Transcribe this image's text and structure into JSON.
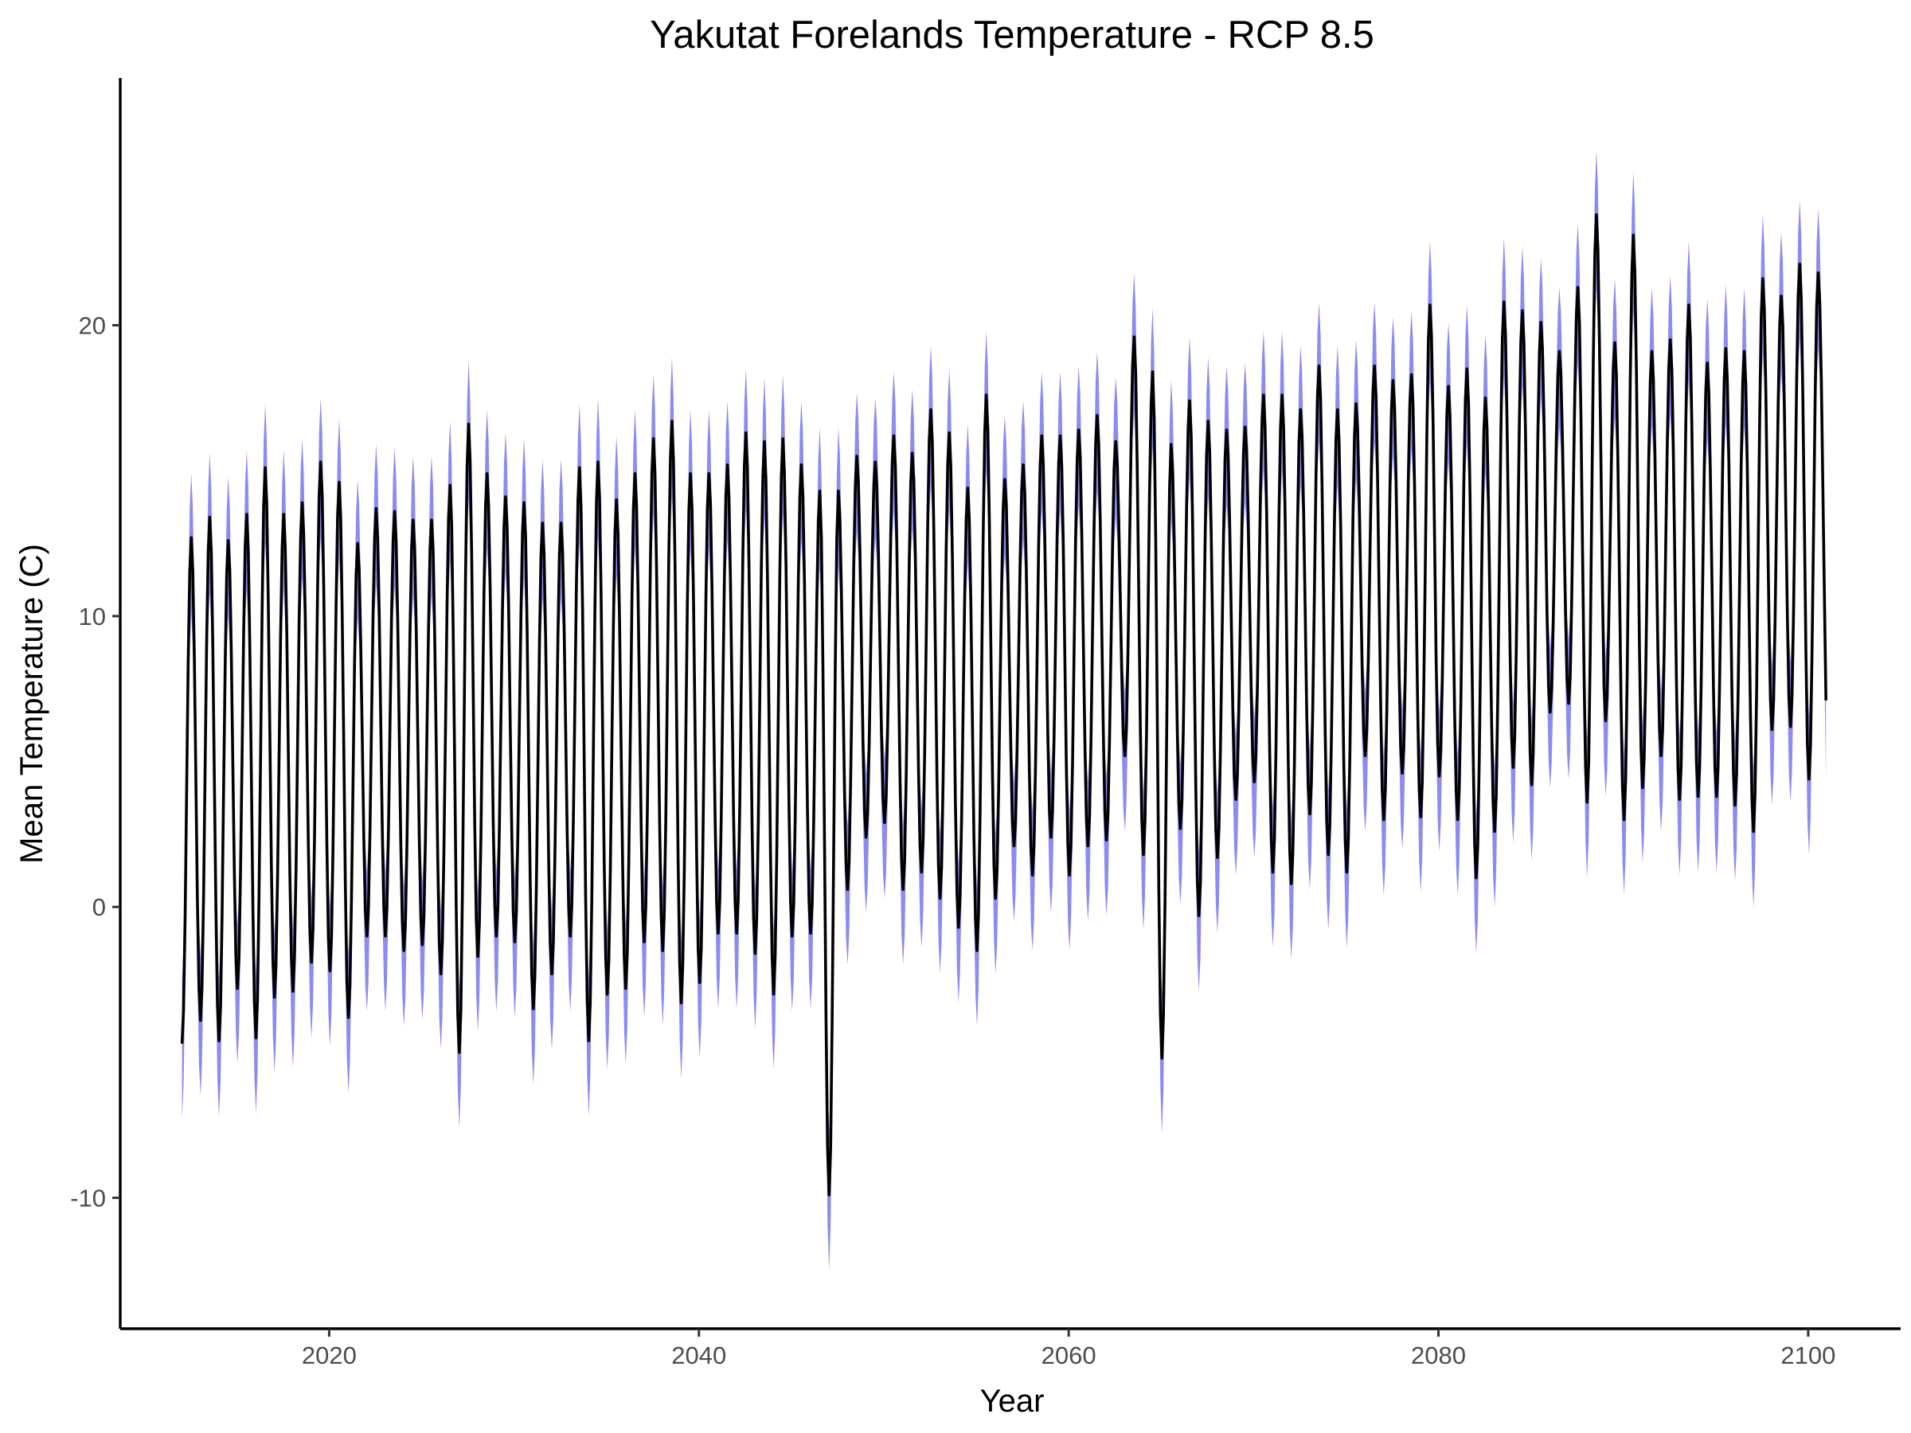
{
  "chart_data": {
    "type": "line",
    "title": "Yakutat Forelands Temperature - RCP 8.5",
    "xlabel": "Year",
    "ylabel": "Mean Temperature (C)",
    "xlim": [
      2008.7,
      2105.0
    ],
    "ylim": [
      -14.5,
      28.5
    ],
    "x_ticks": [
      2020,
      2040,
      2060,
      2080,
      2100
    ],
    "y_ticks": [
      -10,
      0,
      10,
      20
    ],
    "grid": false,
    "legend": "none",
    "colors": {
      "line": "#000000",
      "band": "#7777ee"
    },
    "series_description": "Monthly mean temperature, Jan 2012 - Dec 2100; line = ensemble mean, band = model range",
    "start": "2012-01",
    "end": "2100-12",
    "frequency": "monthly",
    "annual_summer_peak": [
      {
        "year": 2012,
        "value": 12.7
      },
      {
        "year": 2013,
        "value": 13.4
      },
      {
        "year": 2014,
        "value": 12.6
      },
      {
        "year": 2015,
        "value": 13.5
      },
      {
        "year": 2016,
        "value": 15.1
      },
      {
        "year": 2017,
        "value": 13.5
      },
      {
        "year": 2018,
        "value": 13.9
      },
      {
        "year": 2019,
        "value": 15.3
      },
      {
        "year": 2020,
        "value": 14.6
      },
      {
        "year": 2021,
        "value": 12.5
      },
      {
        "year": 2022,
        "value": 13.7
      },
      {
        "year": 2023,
        "value": 13.6
      },
      {
        "year": 2024,
        "value": 13.3
      },
      {
        "year": 2025,
        "value": 13.3
      },
      {
        "year": 2026,
        "value": 14.5
      },
      {
        "year": 2027,
        "value": 16.6
      },
      {
        "year": 2028,
        "value": 14.9
      },
      {
        "year": 2029,
        "value": 14.1
      },
      {
        "year": 2030,
        "value": 13.9
      },
      {
        "year": 2031,
        "value": 13.2
      },
      {
        "year": 2032,
        "value": 13.2
      },
      {
        "year": 2033,
        "value": 15.1
      },
      {
        "year": 2034,
        "value": 15.3
      },
      {
        "year": 2035,
        "value": 14.0
      },
      {
        "year": 2036,
        "value": 14.9
      },
      {
        "year": 2037,
        "value": 16.1
      },
      {
        "year": 2038,
        "value": 16.7
      },
      {
        "year": 2039,
        "value": 14.9
      },
      {
        "year": 2040,
        "value": 14.9
      },
      {
        "year": 2041,
        "value": 15.2
      },
      {
        "year": 2042,
        "value": 16.3
      },
      {
        "year": 2043,
        "value": 16.0
      },
      {
        "year": 2044,
        "value": 16.1
      },
      {
        "year": 2045,
        "value": 15.2
      },
      {
        "year": 2046,
        "value": 14.3
      },
      {
        "year": 2047,
        "value": 14.3
      },
      {
        "year": 2048,
        "value": 15.5
      },
      {
        "year": 2049,
        "value": 15.3
      },
      {
        "year": 2050,
        "value": 16.2
      },
      {
        "year": 2051,
        "value": 15.6
      },
      {
        "year": 2052,
        "value": 17.1
      },
      {
        "year": 2053,
        "value": 16.3
      },
      {
        "year": 2054,
        "value": 14.4
      },
      {
        "year": 2055,
        "value": 17.6
      },
      {
        "year": 2056,
        "value": 14.7
      },
      {
        "year": 2057,
        "value": 15.2
      },
      {
        "year": 2058,
        "value": 16.2
      },
      {
        "year": 2059,
        "value": 16.2
      },
      {
        "year": 2060,
        "value": 16.4
      },
      {
        "year": 2061,
        "value": 16.9
      },
      {
        "year": 2062,
        "value": 16.0
      },
      {
        "year": 2063,
        "value": 19.6
      },
      {
        "year": 2064,
        "value": 18.4
      },
      {
        "year": 2065,
        "value": 15.9
      },
      {
        "year": 2066,
        "value": 17.4
      },
      {
        "year": 2067,
        "value": 16.7
      },
      {
        "year": 2068,
        "value": 16.4
      },
      {
        "year": 2069,
        "value": 16.5
      },
      {
        "year": 2070,
        "value": 17.6
      },
      {
        "year": 2071,
        "value": 17.6
      },
      {
        "year": 2072,
        "value": 17.1
      },
      {
        "year": 2073,
        "value": 18.6
      },
      {
        "year": 2074,
        "value": 17.1
      },
      {
        "year": 2075,
        "value": 17.3
      },
      {
        "year": 2076,
        "value": 18.6
      },
      {
        "year": 2077,
        "value": 18.1
      },
      {
        "year": 2078,
        "value": 18.3
      },
      {
        "year": 2079,
        "value": 20.7
      },
      {
        "year": 2080,
        "value": 17.9
      },
      {
        "year": 2081,
        "value": 18.5
      },
      {
        "year": 2082,
        "value": 17.5
      },
      {
        "year": 2083,
        "value": 20.8
      },
      {
        "year": 2084,
        "value": 20.5
      },
      {
        "year": 2085,
        "value": 20.1
      },
      {
        "year": 2086,
        "value": 19.1
      },
      {
        "year": 2087,
        "value": 21.3
      },
      {
        "year": 2088,
        "value": 23.8
      },
      {
        "year": 2089,
        "value": 19.4
      },
      {
        "year": 2090,
        "value": 23.1
      },
      {
        "year": 2091,
        "value": 19.1
      },
      {
        "year": 2092,
        "value": 19.5
      },
      {
        "year": 2093,
        "value": 20.7
      },
      {
        "year": 2094,
        "value": 18.7
      },
      {
        "year": 2095,
        "value": 19.2
      },
      {
        "year": 2096,
        "value": 19.1
      },
      {
        "year": 2097,
        "value": 21.6
      },
      {
        "year": 2098,
        "value": 21.0
      },
      {
        "year": 2099,
        "value": 22.1
      },
      {
        "year": 2100,
        "value": 21.8
      }
    ],
    "annual_winter_trough": [
      {
        "year": 2012,
        "value": -4.7
      },
      {
        "year": 2013,
        "value": -3.9
      },
      {
        "year": 2014,
        "value": -4.6
      },
      {
        "year": 2015,
        "value": -2.8
      },
      {
        "year": 2016,
        "value": -4.5
      },
      {
        "year": 2017,
        "value": -3.1
      },
      {
        "year": 2018,
        "value": -2.9
      },
      {
        "year": 2019,
        "value": -1.9
      },
      {
        "year": 2020,
        "value": -2.2
      },
      {
        "year": 2021,
        "value": -3.8
      },
      {
        "year": 2022,
        "value": -1.0
      },
      {
        "year": 2023,
        "value": -1.0
      },
      {
        "year": 2024,
        "value": -1.5
      },
      {
        "year": 2025,
        "value": -1.3
      },
      {
        "year": 2026,
        "value": -2.3
      },
      {
        "year": 2027,
        "value": -5.0
      },
      {
        "year": 2028,
        "value": -1.7
      },
      {
        "year": 2029,
        "value": -1.0
      },
      {
        "year": 2030,
        "value": -1.2
      },
      {
        "year": 2031,
        "value": -3.5
      },
      {
        "year": 2032,
        "value": -2.3
      },
      {
        "year": 2033,
        "value": -1.0
      },
      {
        "year": 2034,
        "value": -4.6
      },
      {
        "year": 2035,
        "value": -3.0
      },
      {
        "year": 2036,
        "value": -2.8
      },
      {
        "year": 2037,
        "value": -1.2
      },
      {
        "year": 2038,
        "value": -1.5
      },
      {
        "year": 2039,
        "value": -3.3
      },
      {
        "year": 2040,
        "value": -2.6
      },
      {
        "year": 2041,
        "value": -0.9
      },
      {
        "year": 2042,
        "value": -0.9
      },
      {
        "year": 2043,
        "value": -1.6
      },
      {
        "year": 2044,
        "value": -3.0
      },
      {
        "year": 2045,
        "value": -1.0
      },
      {
        "year": 2046,
        "value": -0.9
      },
      {
        "year": 2047,
        "value": -9.9
      },
      {
        "year": 2048,
        "value": 0.6
      },
      {
        "year": 2049,
        "value": 2.4
      },
      {
        "year": 2050,
        "value": 2.9
      },
      {
        "year": 2051,
        "value": 0.6
      },
      {
        "year": 2052,
        "value": 1.2
      },
      {
        "year": 2053,
        "value": 0.3
      },
      {
        "year": 2054,
        "value": -0.7
      },
      {
        "year": 2055,
        "value": -1.5
      },
      {
        "year": 2056,
        "value": 0.3
      },
      {
        "year": 2057,
        "value": 2.1
      },
      {
        "year": 2058,
        "value": 1.1
      },
      {
        "year": 2059,
        "value": 2.4
      },
      {
        "year": 2060,
        "value": 1.1
      },
      {
        "year": 2061,
        "value": 2.1
      },
      {
        "year": 2062,
        "value": 2.3
      },
      {
        "year": 2063,
        "value": 5.2
      },
      {
        "year": 2064,
        "value": 1.8
      },
      {
        "year": 2065,
        "value": -5.2
      },
      {
        "year": 2066,
        "value": 2.7
      },
      {
        "year": 2067,
        "value": -0.3
      },
      {
        "year": 2068,
        "value": 1.7
      },
      {
        "year": 2069,
        "value": 3.7
      },
      {
        "year": 2070,
        "value": 4.3
      },
      {
        "year": 2071,
        "value": 1.2
      },
      {
        "year": 2072,
        "value": 0.8
      },
      {
        "year": 2073,
        "value": 3.2
      },
      {
        "year": 2074,
        "value": 1.8
      },
      {
        "year": 2075,
        "value": 1.2
      },
      {
        "year": 2076,
        "value": 5.2
      },
      {
        "year": 2077,
        "value": 3.0
      },
      {
        "year": 2078,
        "value": 4.6
      },
      {
        "year": 2079,
        "value": 3.1
      },
      {
        "year": 2080,
        "value": 4.5
      },
      {
        "year": 2081,
        "value": 3.0
      },
      {
        "year": 2082,
        "value": 1.0
      },
      {
        "year": 2083,
        "value": 2.6
      },
      {
        "year": 2084,
        "value": 4.8
      },
      {
        "year": 2085,
        "value": 4.2
      },
      {
        "year": 2086,
        "value": 6.7
      },
      {
        "year": 2087,
        "value": 7.0
      },
      {
        "year": 2088,
        "value": 3.6
      },
      {
        "year": 2089,
        "value": 6.4
      },
      {
        "year": 2090,
        "value": 3.0
      },
      {
        "year": 2091,
        "value": 4.1
      },
      {
        "year": 2092,
        "value": 5.2
      },
      {
        "year": 2093,
        "value": 3.7
      },
      {
        "year": 2094,
        "value": 3.8
      },
      {
        "year": 2095,
        "value": 3.8
      },
      {
        "year": 2096,
        "value": 3.5
      },
      {
        "year": 2097,
        "value": 2.6
      },
      {
        "year": 2098,
        "value": 6.1
      },
      {
        "year": 2099,
        "value": 6.2
      },
      {
        "year": 2100,
        "value": 4.4
      }
    ],
    "band_spread": {
      "summer_above_line": 2.2,
      "winter_below_line": 2.6
    },
    "last_value": {
      "date": "2100-12",
      "value": 7.1
    }
  }
}
